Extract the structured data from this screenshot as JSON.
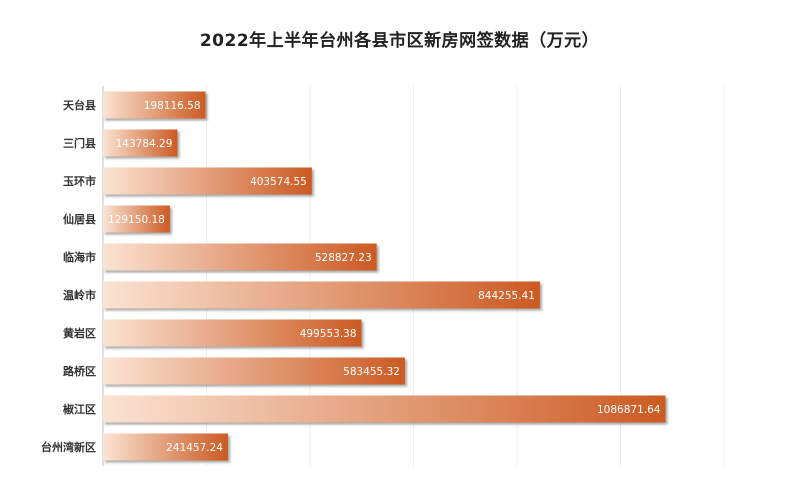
{
  "chart_data": {
    "type": "bar",
    "orientation": "horizontal",
    "title": "2022年上半年台州各县市区新房网签数据（万元）",
    "categories": [
      "天台县",
      "三门县",
      "玉环市",
      "仙居县",
      "临海市",
      "温岭市",
      "黄岩区",
      "路桥区",
      "椒江区",
      "台州湾新区"
    ],
    "values": [
      198116.58,
      143784.29,
      403574.55,
      129150.18,
      528827.23,
      844255.41,
      499553.38,
      583455.32,
      1086871.64,
      241457.24
    ],
    "value_labels": [
      "198116.58",
      "143784.29",
      "403574.55",
      "129150.18",
      "528827.23",
      "844255.41",
      "499553.38",
      "583455.32",
      "1086871.64",
      "241457.24"
    ],
    "xlim": [
      0,
      1200000
    ],
    "grid": true,
    "legend": "none",
    "colors": {
      "bar_start": "#fbe3d3",
      "bar_end": "#cc5a22",
      "grid": "#eeeeee",
      "axis": "#bfbfbf"
    }
  }
}
